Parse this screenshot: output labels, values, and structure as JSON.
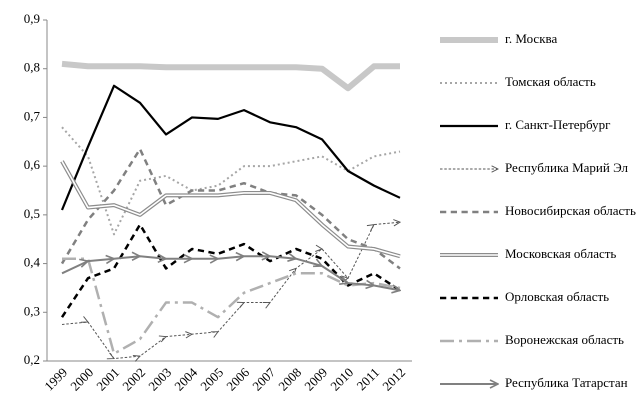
{
  "chart_data": {
    "type": "line",
    "categories": [
      "1999",
      "2000",
      "2001",
      "2002",
      "2003",
      "2004",
      "2005",
      "2006",
      "2007",
      "2008",
      "2009",
      "2010",
      "2011",
      "2012"
    ],
    "ylim": [
      0.2,
      0.9
    ],
    "yticks": [
      {
        "value": 0.2,
        "label": "0,2"
      },
      {
        "value": 0.3,
        "label": "0,3"
      },
      {
        "value": 0.4,
        "label": "0,4"
      },
      {
        "value": 0.5,
        "label": "0,5"
      },
      {
        "value": 0.6,
        "label": "0,6"
      },
      {
        "value": 0.7,
        "label": "0,7"
      },
      {
        "value": 0.8,
        "label": "0,8"
      },
      {
        "value": 0.9,
        "label": "0,9"
      }
    ],
    "grid": false,
    "legend": "right",
    "series": [
      {
        "name": "г. Москва",
        "color": "#c8c8c8",
        "width": 6,
        "dash": "solid",
        "values": [
          0.81,
          0.805,
          0.805,
          0.805,
          0.803,
          0.803,
          0.803,
          0.803,
          0.803,
          0.803,
          0.8,
          0.76,
          0.805,
          0.805
        ]
      },
      {
        "name": "Томская область",
        "color": "#a6a6a6",
        "width": 2,
        "dash": "dotted",
        "values": [
          0.68,
          0.62,
          0.46,
          0.57,
          0.58,
          0.55,
          0.56,
          0.6,
          0.6,
          0.61,
          0.62,
          0.59,
          0.62,
          0.63
        ]
      },
      {
        "name": "г. Санкт-Петербург",
        "color": "#000000",
        "width": 2.2,
        "dash": "solid",
        "values": [
          0.51,
          0.64,
          0.765,
          0.73,
          0.665,
          0.7,
          0.697,
          0.715,
          0.69,
          0.68,
          0.655,
          0.59,
          0.56,
          0.535
        ]
      },
      {
        "name": "Республика Марий Эл",
        "color": "#555555",
        "width": 1,
        "dash": "dashed",
        "marker": "arrow",
        "values": [
          0.275,
          0.28,
          0.205,
          0.21,
          0.25,
          0.255,
          0.26,
          0.32,
          0.32,
          0.39,
          0.43,
          0.37,
          0.48,
          0.485
        ]
      },
      {
        "name": "Новосибирская область",
        "color": "#808080",
        "width": 2.5,
        "dash": "dashed",
        "values": [
          0.4,
          0.49,
          0.55,
          0.635,
          0.52,
          0.55,
          0.55,
          0.565,
          0.545,
          0.54,
          0.5,
          0.45,
          0.43,
          0.39
        ]
      },
      {
        "name": "Московская область",
        "color": "#8c8c8c",
        "width": 4,
        "dash": "double",
        "values": [
          0.61,
          0.515,
          0.52,
          0.5,
          0.54,
          0.54,
          0.54,
          0.545,
          0.545,
          0.53,
          0.48,
          0.435,
          0.43,
          0.415
        ]
      },
      {
        "name": "Орловская область",
        "color": "#000000",
        "width": 2.5,
        "dash": "dashed",
        "values": [
          0.29,
          0.37,
          0.39,
          0.48,
          0.39,
          0.43,
          0.42,
          0.44,
          0.405,
          0.43,
          0.41,
          0.355,
          0.38,
          0.345
        ]
      },
      {
        "name": "Воронежская область",
        "color": "#b0b0b0",
        "width": 2.5,
        "dash": "dashdot",
        "values": [
          0.41,
          0.41,
          0.215,
          0.245,
          0.32,
          0.32,
          0.29,
          0.34,
          0.36,
          0.38,
          0.38,
          0.355,
          0.36,
          0.35
        ]
      },
      {
        "name": "Республика Татарстан",
        "color": "#808080",
        "width": 2,
        "dash": "solid",
        "marker": "arrow",
        "values": [
          0.38,
          0.405,
          0.41,
          0.415,
          0.41,
          0.41,
          0.41,
          0.415,
          0.415,
          0.41,
          0.395,
          0.36,
          0.355,
          0.345
        ]
      }
    ]
  }
}
